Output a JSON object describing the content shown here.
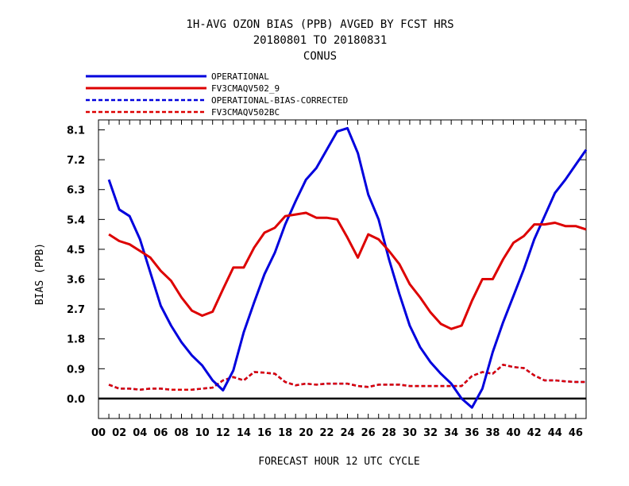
{
  "chart_data": {
    "type": "line",
    "title_lines": [
      "1H-AVG OZON BIAS (PPB)  AVGED BY FCST HRS",
      "20180801 TO 20180831",
      "CONUS"
    ],
    "xlabel": "FORECAST HOUR  12 UTC CYCLE",
    "ylabel": "BIAS (PPB)",
    "xlim": [
      0,
      47
    ],
    "ylim": [
      -0.6,
      8.4
    ],
    "x_ticks": [
      0,
      2,
      4,
      6,
      8,
      10,
      12,
      14,
      16,
      18,
      20,
      22,
      24,
      26,
      28,
      30,
      32,
      34,
      36,
      38,
      40,
      42,
      44,
      46
    ],
    "x_tick_labels": [
      "00",
      "02",
      "04",
      "06",
      "08",
      "10",
      "12",
      "14",
      "16",
      "18",
      "20",
      "22",
      "24",
      "26",
      "28",
      "30",
      "32",
      "34",
      "36",
      "38",
      "40",
      "42",
      "44",
      "46"
    ],
    "y_ticks": [
      0.0,
      0.9,
      1.8,
      2.7,
      3.6,
      4.5,
      5.4,
      6.3,
      7.2,
      8.1
    ],
    "y_tick_labels": [
      "0.0",
      "0.9",
      "1.8",
      "2.7",
      "3.6",
      "4.5",
      "5.4",
      "6.3",
      "7.2",
      "8.1"
    ],
    "zero_line": 0,
    "legend": {
      "placement": "top-left-outside"
    },
    "x": [
      1,
      2,
      3,
      4,
      5,
      6,
      7,
      8,
      9,
      10,
      11,
      12,
      13,
      14,
      15,
      16,
      17,
      18,
      19,
      20,
      21,
      22,
      23,
      24,
      25,
      26,
      27,
      28,
      29,
      30,
      31,
      32,
      33,
      34,
      35,
      36,
      37,
      38,
      39,
      40,
      41,
      42,
      43,
      44,
      45,
      46,
      47
    ],
    "series": [
      {
        "name": "OPERATIONAL",
        "color": "#0000dd",
        "dashed": false,
        "values": [
          6.6,
          5.7,
          5.5,
          4.8,
          3.8,
          2.8,
          2.2,
          1.7,
          1.3,
          1.0,
          0.55,
          0.25,
          0.85,
          2.0,
          2.9,
          3.75,
          4.4,
          5.25,
          5.95,
          6.6,
          6.95,
          7.5,
          8.05,
          8.15,
          7.4,
          6.15,
          5.4,
          4.2,
          3.15,
          2.2,
          1.55,
          1.1,
          0.75,
          0.45,
          0.0,
          -0.27,
          0.3,
          1.4,
          2.3,
          3.1,
          3.9,
          4.8,
          5.5,
          6.2,
          6.6,
          7.05,
          7.5
        ]
      },
      {
        "name": "FV3CMAQV502_9",
        "color": "#dd0000",
        "dashed": false,
        "values": [
          4.95,
          4.75,
          4.65,
          4.45,
          4.25,
          3.85,
          3.55,
          3.05,
          2.65,
          2.5,
          2.62,
          3.3,
          3.95,
          3.95,
          4.55,
          5.0,
          5.15,
          5.5,
          5.55,
          5.6,
          5.45,
          5.45,
          5.4,
          4.85,
          4.25,
          4.95,
          4.8,
          4.45,
          4.05,
          3.45,
          3.05,
          2.6,
          2.25,
          2.1,
          2.2,
          2.95,
          3.6,
          3.6,
          4.2,
          4.7,
          4.9,
          5.25,
          5.25,
          5.3,
          5.2,
          5.2,
          5.1
        ]
      },
      {
        "name": "OPERATIONAL-BIAS-CORRECTED",
        "color": "#0000dd",
        "dashed": true,
        "values": [
          0.42,
          0.3,
          0.3,
          0.27,
          0.3,
          0.3,
          0.27,
          0.27,
          0.27,
          0.3,
          0.33,
          0.55,
          0.65,
          0.55,
          0.8,
          0.78,
          0.75,
          0.5,
          0.4,
          0.45,
          0.42,
          0.45,
          0.45,
          0.45,
          0.38,
          0.35,
          0.42,
          0.42,
          0.42,
          0.38,
          0.38,
          0.38,
          0.38,
          0.38,
          0.38,
          0.68,
          0.8,
          0.75,
          1.02,
          0.95,
          0.92,
          0.7,
          0.55,
          0.55,
          0.52,
          0.5,
          0.5
        ]
      },
      {
        "name": "FV3CMAQV502BC",
        "color": "#dd0000",
        "dashed": true,
        "values": [
          0.42,
          0.3,
          0.3,
          0.27,
          0.3,
          0.3,
          0.27,
          0.27,
          0.27,
          0.3,
          0.33,
          0.55,
          0.65,
          0.55,
          0.8,
          0.78,
          0.75,
          0.5,
          0.4,
          0.45,
          0.42,
          0.45,
          0.45,
          0.45,
          0.38,
          0.35,
          0.42,
          0.42,
          0.42,
          0.38,
          0.38,
          0.38,
          0.38,
          0.38,
          0.38,
          0.68,
          0.8,
          0.75,
          1.02,
          0.95,
          0.92,
          0.7,
          0.55,
          0.55,
          0.52,
          0.5,
          0.5
        ]
      }
    ]
  }
}
